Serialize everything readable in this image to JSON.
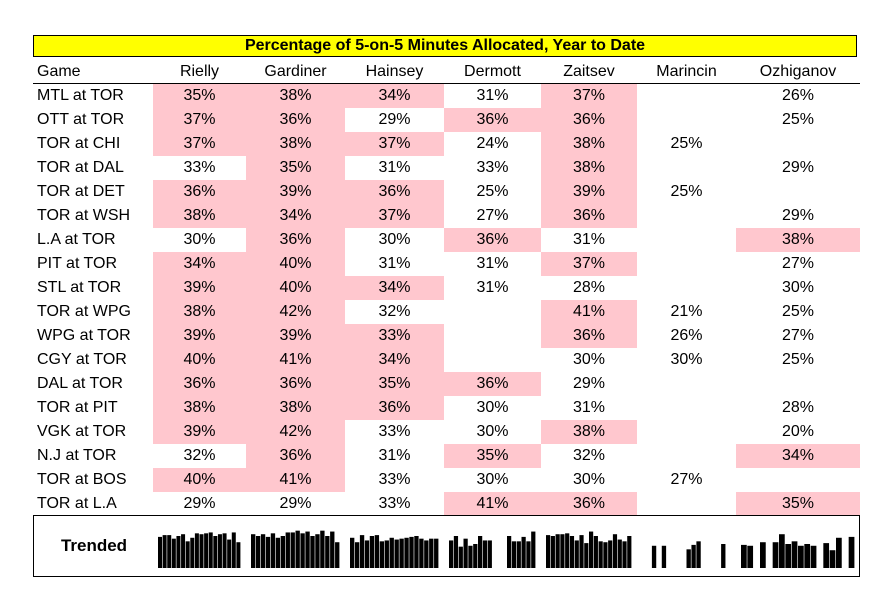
{
  "title": "Percentage of 5-on-5 Minutes Allocated, Year to Date",
  "columns": [
    "Game",
    "Rielly",
    "Gardiner",
    "Hainsey",
    "Dermott",
    "Zaitsev",
    "Marincin",
    "Ozhiganov"
  ],
  "highlight_color": "#ffc7ce",
  "title_color": "#ffff00",
  "rows": [
    {
      "game": "MTL at TOR",
      "values": [
        "35%",
        "38%",
        "34%",
        "31%",
        "37%",
        "",
        "26%"
      ],
      "hl": [
        true,
        true,
        true,
        false,
        true,
        false,
        false
      ]
    },
    {
      "game": "OTT at TOR",
      "values": [
        "37%",
        "36%",
        "29%",
        "36%",
        "36%",
        "",
        "25%"
      ],
      "hl": [
        true,
        true,
        false,
        true,
        true,
        false,
        false
      ]
    },
    {
      "game": "TOR at CHI",
      "values": [
        "37%",
        "38%",
        "37%",
        "24%",
        "38%",
        "25%",
        ""
      ],
      "hl": [
        true,
        true,
        true,
        false,
        true,
        false,
        false
      ]
    },
    {
      "game": "TOR at DAL",
      "values": [
        "33%",
        "35%",
        "31%",
        "33%",
        "38%",
        "",
        "29%"
      ],
      "hl": [
        false,
        true,
        false,
        false,
        true,
        false,
        false
      ]
    },
    {
      "game": "TOR at DET",
      "values": [
        "36%",
        "39%",
        "36%",
        "25%",
        "39%",
        "25%",
        ""
      ],
      "hl": [
        true,
        true,
        true,
        false,
        true,
        false,
        false
      ]
    },
    {
      "game": "TOR at WSH",
      "values": [
        "38%",
        "34%",
        "37%",
        "27%",
        "36%",
        "",
        "29%"
      ],
      "hl": [
        true,
        true,
        true,
        false,
        true,
        false,
        false
      ]
    },
    {
      "game": "L.A at TOR",
      "values": [
        "30%",
        "36%",
        "30%",
        "36%",
        "31%",
        "",
        "38%"
      ],
      "hl": [
        false,
        true,
        false,
        true,
        false,
        false,
        true
      ]
    },
    {
      "game": "PIT at TOR",
      "values": [
        "34%",
        "40%",
        "31%",
        "31%",
        "37%",
        "",
        "27%"
      ],
      "hl": [
        true,
        true,
        false,
        false,
        true,
        false,
        false
      ]
    },
    {
      "game": "STL at TOR",
      "values": [
        "39%",
        "40%",
        "34%",
        "31%",
        "28%",
        "",
        "30%"
      ],
      "hl": [
        true,
        true,
        true,
        false,
        false,
        false,
        false
      ]
    },
    {
      "game": "TOR at WPG",
      "values": [
        "38%",
        "42%",
        "32%",
        "",
        "41%",
        "21%",
        "25%"
      ],
      "hl": [
        true,
        true,
        false,
        false,
        true,
        false,
        false
      ]
    },
    {
      "game": "WPG at TOR",
      "values": [
        "39%",
        "39%",
        "33%",
        "",
        "36%",
        "26%",
        "27%"
      ],
      "hl": [
        true,
        true,
        true,
        false,
        true,
        false,
        false
      ]
    },
    {
      "game": "CGY at TOR",
      "values": [
        "40%",
        "41%",
        "34%",
        "",
        "30%",
        "30%",
        "25%"
      ],
      "hl": [
        true,
        true,
        true,
        false,
        false,
        false,
        false
      ]
    },
    {
      "game": "DAL at TOR",
      "values": [
        "36%",
        "36%",
        "35%",
        "36%",
        "29%",
        "",
        ""
      ],
      "hl": [
        true,
        true,
        true,
        true,
        false,
        false,
        false
      ]
    },
    {
      "game": "TOR at PIT",
      "values": [
        "38%",
        "38%",
        "36%",
        "30%",
        "31%",
        "",
        "28%"
      ],
      "hl": [
        true,
        true,
        true,
        false,
        false,
        false,
        false
      ]
    },
    {
      "game": "VGK at TOR",
      "values": [
        "39%",
        "42%",
        "33%",
        "30%",
        "38%",
        "",
        "20%"
      ],
      "hl": [
        true,
        true,
        false,
        false,
        true,
        false,
        false
      ]
    },
    {
      "game": "N.J at TOR",
      "values": [
        "32%",
        "36%",
        "31%",
        "35%",
        "32%",
        "",
        "34%"
      ],
      "hl": [
        false,
        true,
        false,
        true,
        false,
        false,
        true
      ]
    },
    {
      "game": "TOR at BOS",
      "values": [
        "40%",
        "41%",
        "33%",
        "30%",
        "30%",
        "27%",
        ""
      ],
      "hl": [
        true,
        true,
        false,
        false,
        false,
        false,
        false
      ]
    },
    {
      "game": "TOR at L.A",
      "values": [
        "29%",
        "29%",
        "33%",
        "41%",
        "36%",
        "",
        "35%"
      ],
      "hl": [
        false,
        false,
        false,
        true,
        true,
        false,
        true
      ]
    }
  ],
  "trend": {
    "label": "Trended"
  },
  "chart_data": {
    "type": "table",
    "title": "Percentage of 5-on-5 Minutes Allocated, Year to Date",
    "categories": [
      "MTL at TOR",
      "OTT at TOR",
      "TOR at CHI",
      "TOR at DAL",
      "TOR at DET",
      "TOR at WSH",
      "L.A at TOR",
      "PIT at TOR",
      "STL at TOR",
      "TOR at WPG",
      "WPG at TOR",
      "CGY at TOR",
      "DAL at TOR",
      "TOR at PIT",
      "VGK at TOR",
      "N.J at TOR",
      "TOR at BOS",
      "TOR at L.A"
    ],
    "series": [
      {
        "name": "Rielly",
        "values": [
          35,
          37,
          37,
          33,
          36,
          38,
          30,
          34,
          39,
          38,
          39,
          40,
          36,
          38,
          39,
          32,
          40,
          29
        ]
      },
      {
        "name": "Gardiner",
        "values": [
          38,
          36,
          38,
          35,
          39,
          34,
          36,
          40,
          40,
          42,
          39,
          41,
          36,
          38,
          42,
          36,
          41,
          29
        ]
      },
      {
        "name": "Hainsey",
        "values": [
          34,
          29,
          37,
          31,
          36,
          37,
          30,
          31,
          34,
          32,
          33,
          34,
          35,
          36,
          33,
          31,
          33,
          33
        ]
      },
      {
        "name": "Dermott",
        "values": [
          31,
          36,
          24,
          33,
          25,
          27,
          36,
          31,
          31,
          null,
          null,
          null,
          36,
          30,
          30,
          35,
          30,
          41
        ]
      },
      {
        "name": "Zaitsev",
        "values": [
          37,
          36,
          38,
          38,
          39,
          36,
          31,
          37,
          28,
          41,
          36,
          30,
          29,
          31,
          38,
          32,
          30,
          36
        ]
      },
      {
        "name": "Marincin",
        "values": [
          null,
          null,
          25,
          null,
          25,
          null,
          null,
          null,
          null,
          21,
          26,
          30,
          null,
          null,
          null,
          null,
          27,
          null
        ]
      },
      {
        "name": "Ozhiganov",
        "values": [
          26,
          25,
          null,
          29,
          null,
          29,
          38,
          27,
          30,
          25,
          27,
          25,
          null,
          28,
          20,
          34,
          null,
          35
        ]
      }
    ],
    "trend_ylim": [
      0,
      45
    ]
  }
}
